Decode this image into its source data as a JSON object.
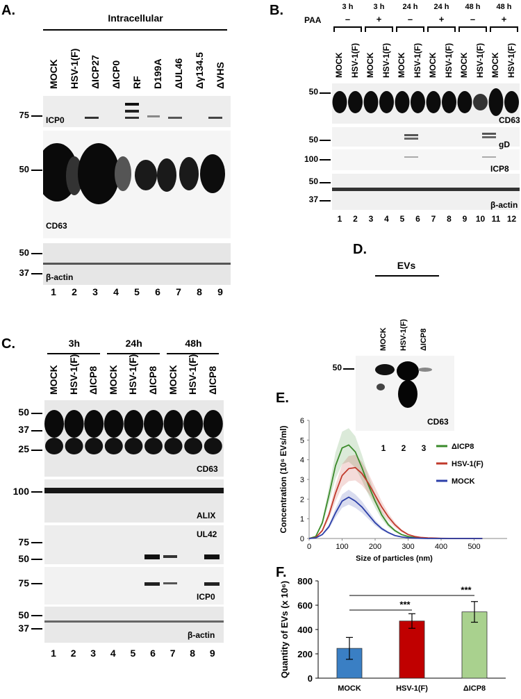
{
  "panelA": {
    "label": "A.",
    "header": "Intracellular",
    "lanes": [
      "MOCK",
      "HSV-1(F)",
      "ΔICP27",
      "ΔICP0",
      "RF",
      "D199A",
      "ΔUL46",
      "Δγ134.5",
      "ΔVHS"
    ],
    "numbers": [
      "1",
      "2",
      "3",
      "4",
      "5",
      "6",
      "7",
      "8",
      "9"
    ],
    "blots": [
      {
        "name": "ICP0",
        "markers": [
          "75"
        ]
      },
      {
        "name": "CD63",
        "markers": [
          "50"
        ]
      },
      {
        "name": "β-actin",
        "markers": [
          "50",
          "37"
        ]
      }
    ]
  },
  "panelB": {
    "label": "B.",
    "paa": "PAA",
    "groups": [
      {
        "time": "3 h",
        "paa": "–"
      },
      {
        "time": "3 h",
        "paa": "+"
      },
      {
        "time": "24 h",
        "paa": "–"
      },
      {
        "time": "24 h",
        "paa": "+"
      },
      {
        "time": "48 h",
        "paa": "–"
      },
      {
        "time": "48 h",
        "paa": "+"
      }
    ],
    "lanes": [
      "MOCK",
      "HSV-1(F)",
      "MOCK",
      "HSV-1(F)",
      "MOCK",
      "HSV-1(F)",
      "MOCK",
      "HSV-1(F)",
      "MOCK",
      "HSV-1(F)",
      "MOCK",
      "HSV-1(F)"
    ],
    "numbers": [
      "1",
      "2",
      "3",
      "4",
      "5",
      "6",
      "7",
      "8",
      "9",
      "10",
      "11",
      "12"
    ],
    "blots": [
      {
        "name": "CD63",
        "markers": [
          "50"
        ]
      },
      {
        "name": "gD",
        "markers": [
          "50"
        ]
      },
      {
        "name": "ICP8",
        "markers": [
          "100"
        ]
      },
      {
        "name": "β-actin",
        "markers": [
          "50",
          "37"
        ]
      }
    ]
  },
  "panelC": {
    "label": "C.",
    "groups": [
      "3h",
      "24h",
      "48h"
    ],
    "lanes": [
      "MOCK",
      "HSV-1(F)",
      "ΔICP8",
      "MOCK",
      "HSV-1(F)",
      "ΔICP8",
      "MOCK",
      "HSV-1(F)",
      "ΔICP8"
    ],
    "numbers": [
      "1",
      "2",
      "3",
      "4",
      "5",
      "6",
      "7",
      "8",
      "9"
    ],
    "blots": [
      {
        "name": "CD63",
        "markers": [
          "50",
          "37",
          "25"
        ]
      },
      {
        "name": "ALIX",
        "markers": [
          "100"
        ]
      },
      {
        "name": "UL42",
        "markers": [
          "75",
          "50"
        ]
      },
      {
        "name": "ICP0",
        "markers": [
          "75"
        ]
      },
      {
        "name": "β-actin",
        "markers": [
          "50",
          "37"
        ]
      }
    ]
  },
  "panelD": {
    "label": "D.",
    "header": "EVs",
    "lanes": [
      "MOCK",
      "HSV-1(F)",
      "ΔICP8"
    ],
    "numbers": [
      "1",
      "2",
      "3"
    ],
    "blot": {
      "name": "CD63",
      "markers": [
        "50"
      ]
    }
  },
  "panelE": {
    "label": "E.",
    "chart_data": {
      "type": "line",
      "xlabel": "Size of particles (nm)",
      "ylabel": "Concentration (10⁶ EVs/ml)",
      "xlim": [
        0,
        600
      ],
      "ylim": [
        0,
        6
      ],
      "xticks": [
        "0",
        "100",
        "200",
        "300",
        "400",
        "500"
      ],
      "yticks": [
        "0",
        "1",
        "2",
        "3",
        "4",
        "5",
        "6"
      ],
      "legend_position": "right",
      "x": [
        0,
        20,
        40,
        60,
        80,
        100,
        120,
        140,
        160,
        180,
        200,
        220,
        240,
        260,
        280,
        300,
        320,
        340,
        360,
        380,
        400,
        450,
        500,
        525
      ],
      "series": [
        {
          "name": "ΔICP8",
          "color": "#3a8a2a",
          "values": [
            0,
            0.1,
            0.8,
            2.2,
            3.7,
            4.6,
            4.75,
            4.4,
            3.6,
            2.7,
            1.9,
            1.2,
            0.7,
            0.4,
            0.2,
            0.1,
            0.05,
            0.03,
            0.02,
            0.01,
            0,
            0,
            0,
            0
          ]
        },
        {
          "name": "HSV-1(F)",
          "color": "#c0392b",
          "values": [
            0,
            0.05,
            0.4,
            1.2,
            2.3,
            3.2,
            3.55,
            3.6,
            3.3,
            2.8,
            2.2,
            1.6,
            1.1,
            0.7,
            0.4,
            0.2,
            0.1,
            0.05,
            0.03,
            0.02,
            0.01,
            0,
            0,
            0
          ]
        },
        {
          "name": "MOCK",
          "color": "#2c3fa8",
          "values": [
            0,
            0.03,
            0.2,
            0.6,
            1.3,
            1.9,
            2.1,
            1.9,
            1.6,
            1.2,
            0.8,
            0.5,
            0.3,
            0.15,
            0.08,
            0.04,
            0.02,
            0.01,
            0,
            0,
            0,
            0,
            0,
            0
          ]
        }
      ]
    }
  },
  "panelF": {
    "label": "F.",
    "chart_data": {
      "type": "bar",
      "categories": [
        "MOCK",
        "HSV-1(F)",
        "ΔICP8"
      ],
      "values": [
        245,
        470,
        545
      ],
      "errors": [
        90,
        60,
        85
      ],
      "colors": [
        "#3a7fc4",
        "#c00000",
        "#a9d18e"
      ],
      "ylabel": "Quantity of EVs (x 10⁶)",
      "ylim": [
        0,
        800
      ],
      "yticks": [
        "0",
        "200",
        "400",
        "600",
        "800"
      ],
      "significance": [
        "***",
        "***"
      ]
    }
  }
}
